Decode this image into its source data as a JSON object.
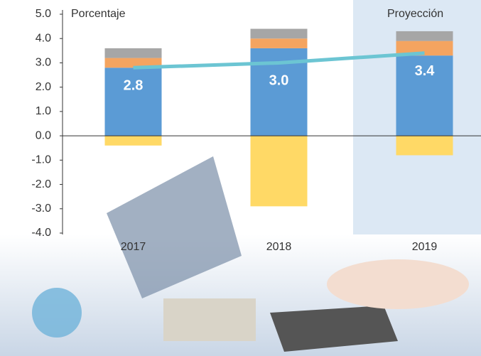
{
  "chart_data": {
    "type": "bar",
    "annotations": [
      "Porcentaje",
      "Proyección"
    ],
    "categories": [
      "2017",
      "2018",
      "2019"
    ],
    "series": [
      {
        "color": "#5b9bd5",
        "values": [
          2.8,
          3.6,
          3.3
        ]
      },
      {
        "color": "#f4a460",
        "values": [
          0.4,
          0.4,
          0.6
        ]
      },
      {
        "color": "#a6a6a6",
        "values": [
          0.4,
          0.4,
          0.4
        ]
      },
      {
        "color": "#ffd966",
        "values": [
          -0.4,
          -2.9,
          -0.8
        ]
      }
    ],
    "line": {
      "color": "#6cc5d3",
      "values": [
        2.8,
        3.0,
        3.4
      ],
      "value_labels": [
        "2.8",
        "3.0",
        "3.4"
      ]
    },
    "ylim": [
      -4,
      5
    ],
    "yticks": [
      {
        "value": 5,
        "label": "5.0"
      },
      {
        "value": 4,
        "label": "4.0"
      },
      {
        "value": 3,
        "label": "3.0"
      },
      {
        "value": 2,
        "label": "2.0"
      },
      {
        "value": 1,
        "label": "1.0"
      },
      {
        "value": 0,
        "label": "0.0"
      },
      {
        "value": -1,
        "label": "-1.0"
      },
      {
        "value": -2,
        "label": "-2.0"
      },
      {
        "value": -3,
        "label": "-3.0"
      },
      {
        "value": -4,
        "label": "-4.0"
      }
    ]
  }
}
